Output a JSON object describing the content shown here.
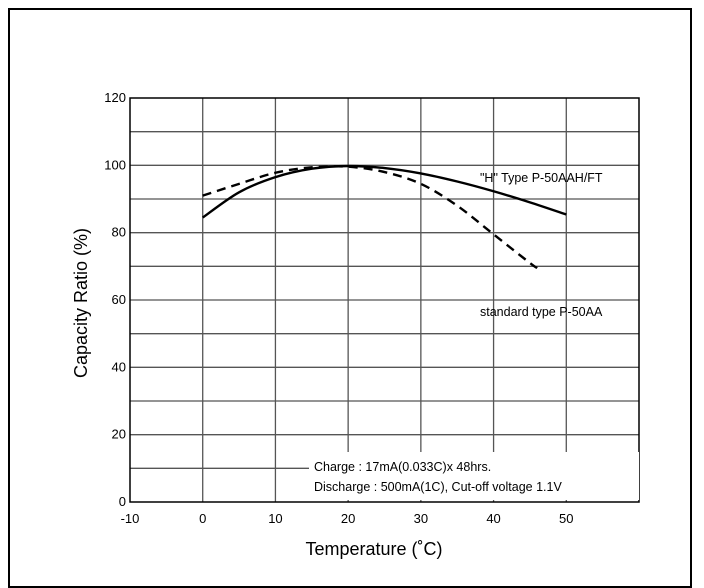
{
  "chart_data": {
    "type": "line",
    "xlabel": "Temperature (˚C)",
    "ylabel": "Capacity Ratio (%)",
    "xlim": [
      -10,
      60
    ],
    "ylim": [
      0,
      120
    ],
    "x_ticks": [
      "-10",
      "0",
      "10",
      "20",
      "30",
      "40",
      "50"
    ],
    "y_ticks": [
      "0",
      "20",
      "40",
      "60",
      "80",
      "100",
      "120"
    ],
    "grid": true,
    "series": [
      {
        "name": "\"H\" Type P-50AAH/FT",
        "style": "solid",
        "color": "#000000",
        "x": [
          0,
          5,
          10,
          15,
          20,
          25,
          30,
          35,
          40,
          45,
          50
        ],
        "y": [
          84.5,
          92,
          96.5,
          99,
          99.8,
          99.2,
          97.6,
          95.2,
          92.3,
          89,
          85.4
        ]
      },
      {
        "name": "standard type P-50AA",
        "style": "dashed",
        "color": "#000000",
        "x": [
          0,
          5,
          10,
          15,
          20,
          25,
          30,
          35,
          40,
          45,
          46
        ],
        "y": [
          91,
          94.5,
          97.8,
          99.4,
          99.6,
          98,
          94.5,
          88,
          79.5,
          71,
          69.5
        ]
      }
    ],
    "annotations": [
      "Charge : 17mA(0.033C)x 48hrs.",
      "Discharge : 500mA(1C), Cut-off voltage 1.1V"
    ]
  }
}
